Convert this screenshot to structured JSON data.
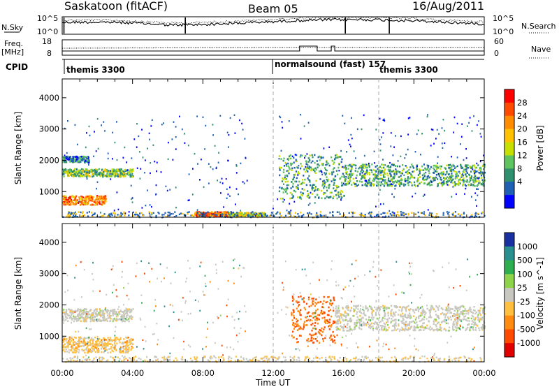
{
  "header": {
    "station_title": "Saskatoon (fitACF)",
    "beam_title": "Beam 05",
    "date_title": "16/Aug/2011"
  },
  "nsky_panel": {
    "left_label": "N.Sky",
    "right_label": "N.Search",
    "left_ticks": [
      "10^5",
      "10^0"
    ],
    "right_ticks": [
      "10^5",
      "10^0"
    ]
  },
  "freq_panel": {
    "left_label_line1": "Freq.",
    "left_label_line2": "[MHz]",
    "right_label": "Nave",
    "left_ticks": [
      "18",
      "8"
    ],
    "right_ticks": [
      "60",
      "0"
    ]
  },
  "cpid": {
    "label": "CPID",
    "segments": [
      {
        "name": "themis 3300",
        "start_hour": 0
      },
      {
        "name": "normalsound (fast) 157",
        "start_hour": 12
      },
      {
        "name": "themis 3300",
        "start_hour": 18
      }
    ]
  },
  "power_panel": {
    "ylabel": "Slant Range [km]",
    "colorbar_label": "Power [dB]",
    "colorbar_ticks": [
      "28",
      "24",
      "20",
      "16",
      "12",
      "8",
      "4"
    ],
    "colorbar_colors": [
      "#ff0000",
      "#ff4a00",
      "#ff8c00",
      "#ffc200",
      "#c8e000",
      "#5fc35f",
      "#2f8f6f",
      "#1f5fb4",
      "#0000ff"
    ]
  },
  "velocity_panel": {
    "ylabel": "Slant Range [km]",
    "colorbar_label": "Velocity [m s^-1]",
    "colorbar_ticks": [
      "1000",
      "500",
      "100",
      "25",
      "-25",
      "-100",
      "-500",
      "-1000"
    ],
    "colorbar_colors": [
      "#1a2fa0",
      "#2a8f8f",
      "#2fae4f",
      "#8ed44a",
      "#c8c8c0",
      "#ffc040",
      "#ff8c10",
      "#ff4a00",
      "#e00000"
    ]
  },
  "chart_data": {
    "type": "heatmap",
    "xlabel": "Time UT",
    "x_tick_labels": [
      "00:00",
      "04:00",
      "08:00",
      "12:00",
      "16:00",
      "20:00",
      "00:00"
    ],
    "x_range_hours": [
      0,
      24
    ],
    "y_tick_labels": [
      "1000",
      "2000",
      "3000",
      "4000"
    ],
    "y_range_km": [
      180,
      4600
    ],
    "dashed_markers_hours": [
      12,
      18
    ],
    "power_features": [
      {
        "t0": 0.0,
        "t1": 2.5,
        "r0": 600,
        "r1": 900,
        "level": 24
      },
      {
        "t0": 0.0,
        "t1": 4.0,
        "r0": 1500,
        "r1": 1750,
        "level": 14
      },
      {
        "t0": 0.0,
        "t1": 1.5,
        "r0": 1950,
        "r1": 2150,
        "level": 8
      },
      {
        "t0": 7.5,
        "t1": 9.5,
        "r0": 220,
        "r1": 380,
        "level": 26
      },
      {
        "t0": 9.5,
        "t1": 11.5,
        "r0": 220,
        "r1": 350,
        "level": 18
      },
      {
        "t0": 12.3,
        "t1": 16.0,
        "r0": 800,
        "r1": 2200,
        "level": 12
      },
      {
        "t0": 16.0,
        "t1": 24.0,
        "r0": 1200,
        "r1": 1900,
        "level": 12
      }
    ],
    "velocity_features": [
      {
        "t0": 0.0,
        "t1": 4.0,
        "r0": 500,
        "r1": 1000,
        "value": -60
      },
      {
        "t0": 0.0,
        "t1": 4.0,
        "r0": 1500,
        "r1": 1900,
        "value": 0
      },
      {
        "t0": 13.0,
        "t1": 15.5,
        "r0": 800,
        "r1": 2300,
        "value": -300
      },
      {
        "t0": 15.5,
        "t1": 24.0,
        "r0": 1200,
        "r1": 2000,
        "value": 0
      }
    ]
  }
}
